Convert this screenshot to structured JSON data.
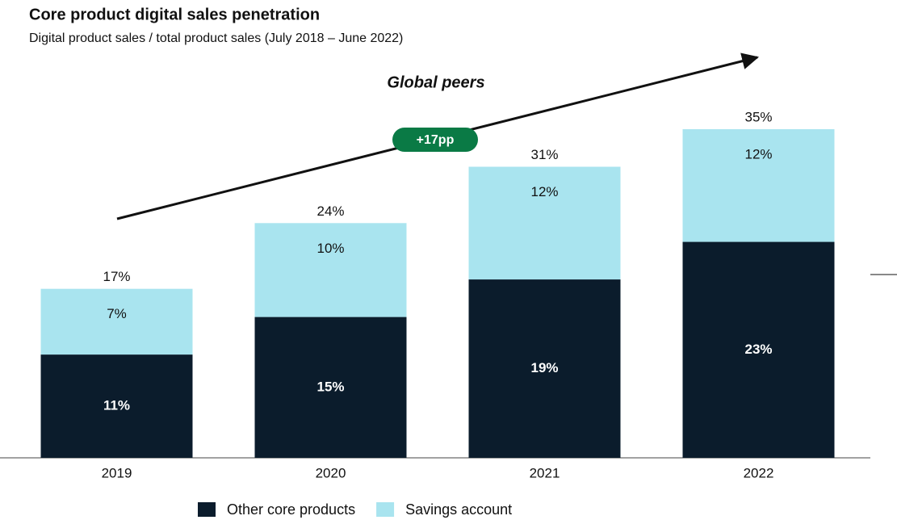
{
  "chart_data": {
    "type": "stacked_bar",
    "title": "Core product digital sales penetration",
    "subtitle": "Digital product sales / total product sales (July 2018 – June 2022)",
    "annotations": {
      "group_label": "Global peers",
      "change": "+17pp"
    },
    "categories": [
      "2019",
      "2020",
      "2021",
      "2022"
    ],
    "series": [
      {
        "name": "Other core products",
        "color": "#0b1c2c",
        "values": [
          11,
          15,
          19,
          23
        ],
        "value_labels": [
          "11%",
          "15%",
          "19%",
          "23%"
        ]
      },
      {
        "name": "Savings account",
        "color": "#a9e4ef",
        "values": [
          7,
          10,
          12,
          12
        ],
        "value_labels": [
          "7%",
          "10%",
          "12%",
          "12%"
        ]
      }
    ],
    "totals": {
      "values": [
        17,
        24,
        31,
        35
      ],
      "value_labels": [
        "17%",
        "24%",
        "31%",
        "35%"
      ]
    },
    "legend": "bottom"
  }
}
